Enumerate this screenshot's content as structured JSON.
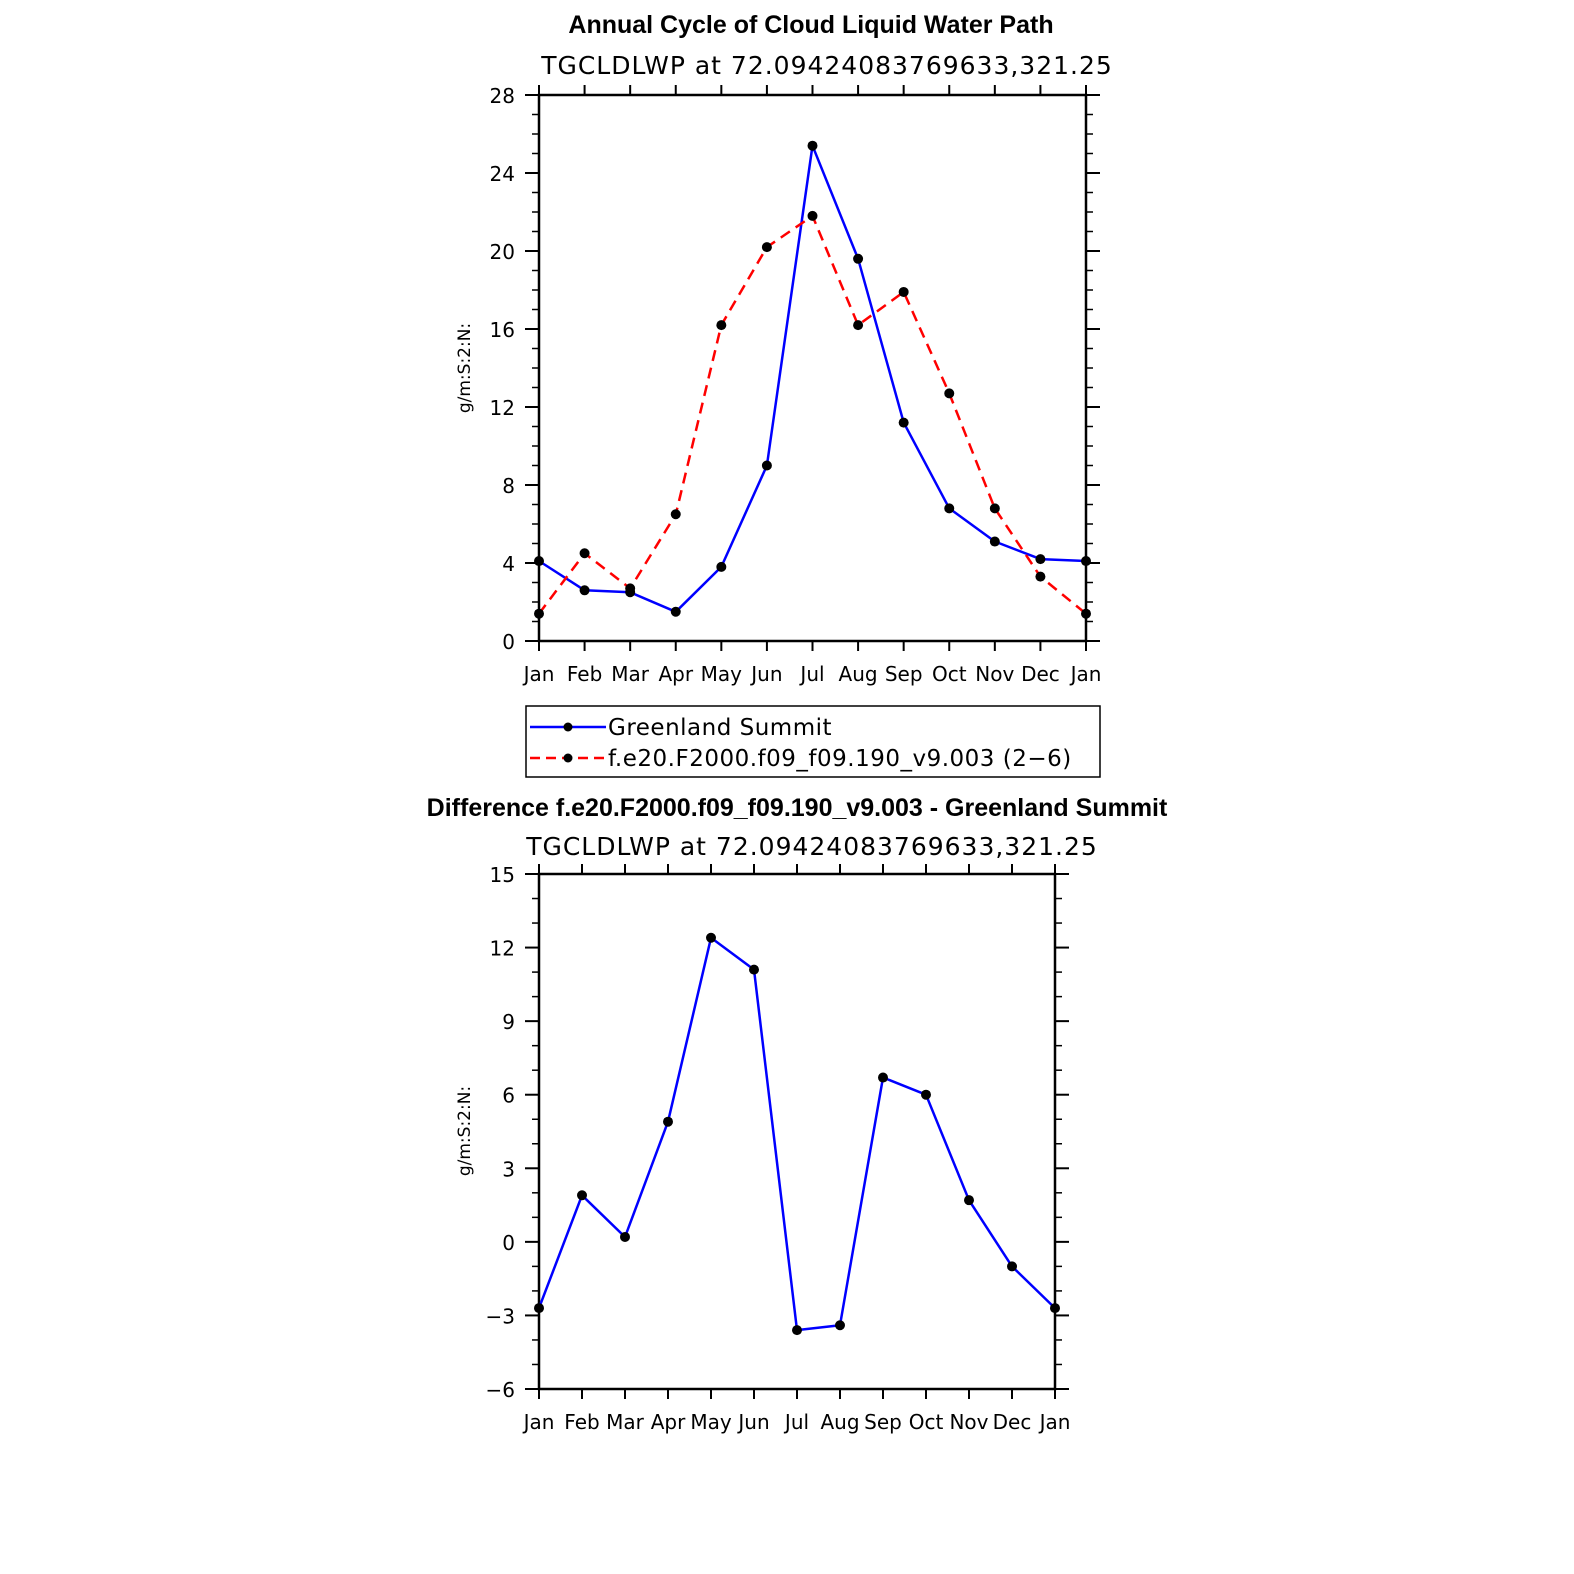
{
  "chart_data": [
    {
      "type": "line",
      "title": "Annual Cycle of Cloud Liquid Water Path",
      "subtitle": "TGCLDLWP  at  72.09424083769633,321.25",
      "ylabel": "g/m:S:2:N:",
      "xlabel": "",
      "categories": [
        "Jan",
        "Feb",
        "Mar",
        "Apr",
        "May",
        "Jun",
        "Jul",
        "Aug",
        "Sep",
        "Oct",
        "Nov",
        "Dec",
        "Jan"
      ],
      "ylim": [
        0,
        28
      ],
      "yticks": [
        "0",
        "4",
        "8",
        "12",
        "16",
        "20",
        "24",
        "28"
      ],
      "series": [
        {
          "name": "Greenland Summit",
          "color": "#0000ff",
          "dash": "solid",
          "values": [
            4.1,
            2.6,
            2.5,
            1.5,
            3.8,
            9.0,
            25.4,
            19.6,
            11.2,
            6.8,
            5.1,
            4.2,
            4.1
          ]
        },
        {
          "name": "f.e20.F2000.f09_f09.190_v9.003 (2−6)",
          "color": "#ff0000",
          "dash": "dashed",
          "values": [
            1.4,
            4.5,
            2.7,
            6.5,
            16.2,
            20.2,
            21.8,
            16.2,
            17.9,
            12.7,
            6.8,
            3.3,
            1.4
          ]
        }
      ]
    },
    {
      "type": "line",
      "title": "Difference f.e20.F2000.f09_f09.190_v9.003 - Greenland Summit",
      "subtitle": "TGCLDLWP  at  72.09424083769633,321.25",
      "ylabel": "g/m:S:2:N:",
      "xlabel": "",
      "categories": [
        "Jan",
        "Feb",
        "Mar",
        "Apr",
        "May",
        "Jun",
        "Jul",
        "Aug",
        "Sep",
        "Oct",
        "Nov",
        "Dec",
        "Jan"
      ],
      "ylim": [
        -6,
        15
      ],
      "yticks": [
        "−6",
        "−3",
        "0",
        "3",
        "6",
        "9",
        "12",
        "15"
      ],
      "series": [
        {
          "name": "Difference",
          "color": "#0000ff",
          "dash": "solid",
          "values": [
            -2.7,
            1.9,
            0.2,
            4.9,
            12.4,
            11.1,
            -3.6,
            -3.4,
            6.7,
            6.0,
            1.7,
            -1.0,
            -2.7
          ]
        }
      ]
    }
  ]
}
